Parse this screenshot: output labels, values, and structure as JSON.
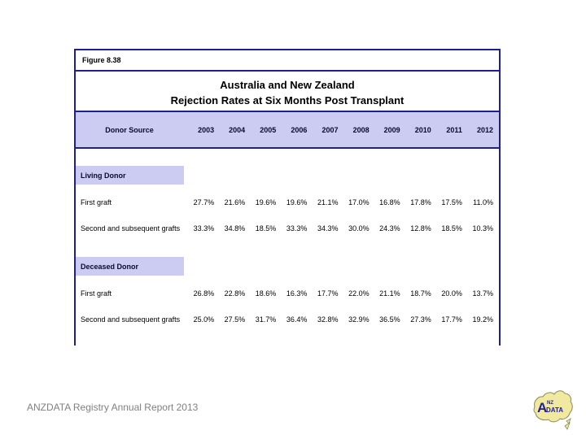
{
  "figure_label": "Figure 8.38",
  "title_line1": "Australia and New Zealand",
  "title_line2": "Rejection Rates at Six Months Post Transplant",
  "footer": "ANZDATA Registry Annual Report 2013",
  "logo": {
    "icon": "anzdata-australia-map-logo",
    "text_a": "A",
    "text_nz": "NZ",
    "text_data": "DATA"
  },
  "colors": {
    "border_navy": "#1f1f94",
    "band_lavender": "#ccccf2",
    "footer_gray": "#808080",
    "logo_yellow": "#f2e9a0"
  },
  "chart_data": {
    "type": "table",
    "title": "Australia and New Zealand Rejection Rates at Six Months Post Transplant",
    "row_header": "Donor Source",
    "years": [
      "2003",
      "2004",
      "2005",
      "2006",
      "2007",
      "2008",
      "2009",
      "2010",
      "2011",
      "2012"
    ],
    "sections": [
      {
        "name": "Living Donor",
        "rows": [
          {
            "label": "First graft",
            "values": [
              "27.7%",
              "21.6%",
              "19.6%",
              "19.6%",
              "21.1%",
              "17.0%",
              "16.8%",
              "17.8%",
              "17.5%",
              "11.0%"
            ]
          },
          {
            "label": "Second and subsequent grafts",
            "values": [
              "33.3%",
              "34.8%",
              "18.5%",
              "33.3%",
              "34.3%",
              "30.0%",
              "24.3%",
              "12.8%",
              "18.5%",
              "10.3%"
            ]
          }
        ]
      },
      {
        "name": "Deceased Donor",
        "rows": [
          {
            "label": "First graft",
            "values": [
              "26.8%",
              "22.8%",
              "18.6%",
              "16.3%",
              "17.7%",
              "22.0%",
              "21.1%",
              "18.7%",
              "20.0%",
              "13.7%"
            ]
          },
          {
            "label": "Second and subsequent grafts",
            "values": [
              "25.0%",
              "27.5%",
              "31.7%",
              "36.4%",
              "32.8%",
              "32.9%",
              "36.5%",
              "27.3%",
              "17.7%",
              "19.2%"
            ]
          }
        ]
      }
    ]
  }
}
